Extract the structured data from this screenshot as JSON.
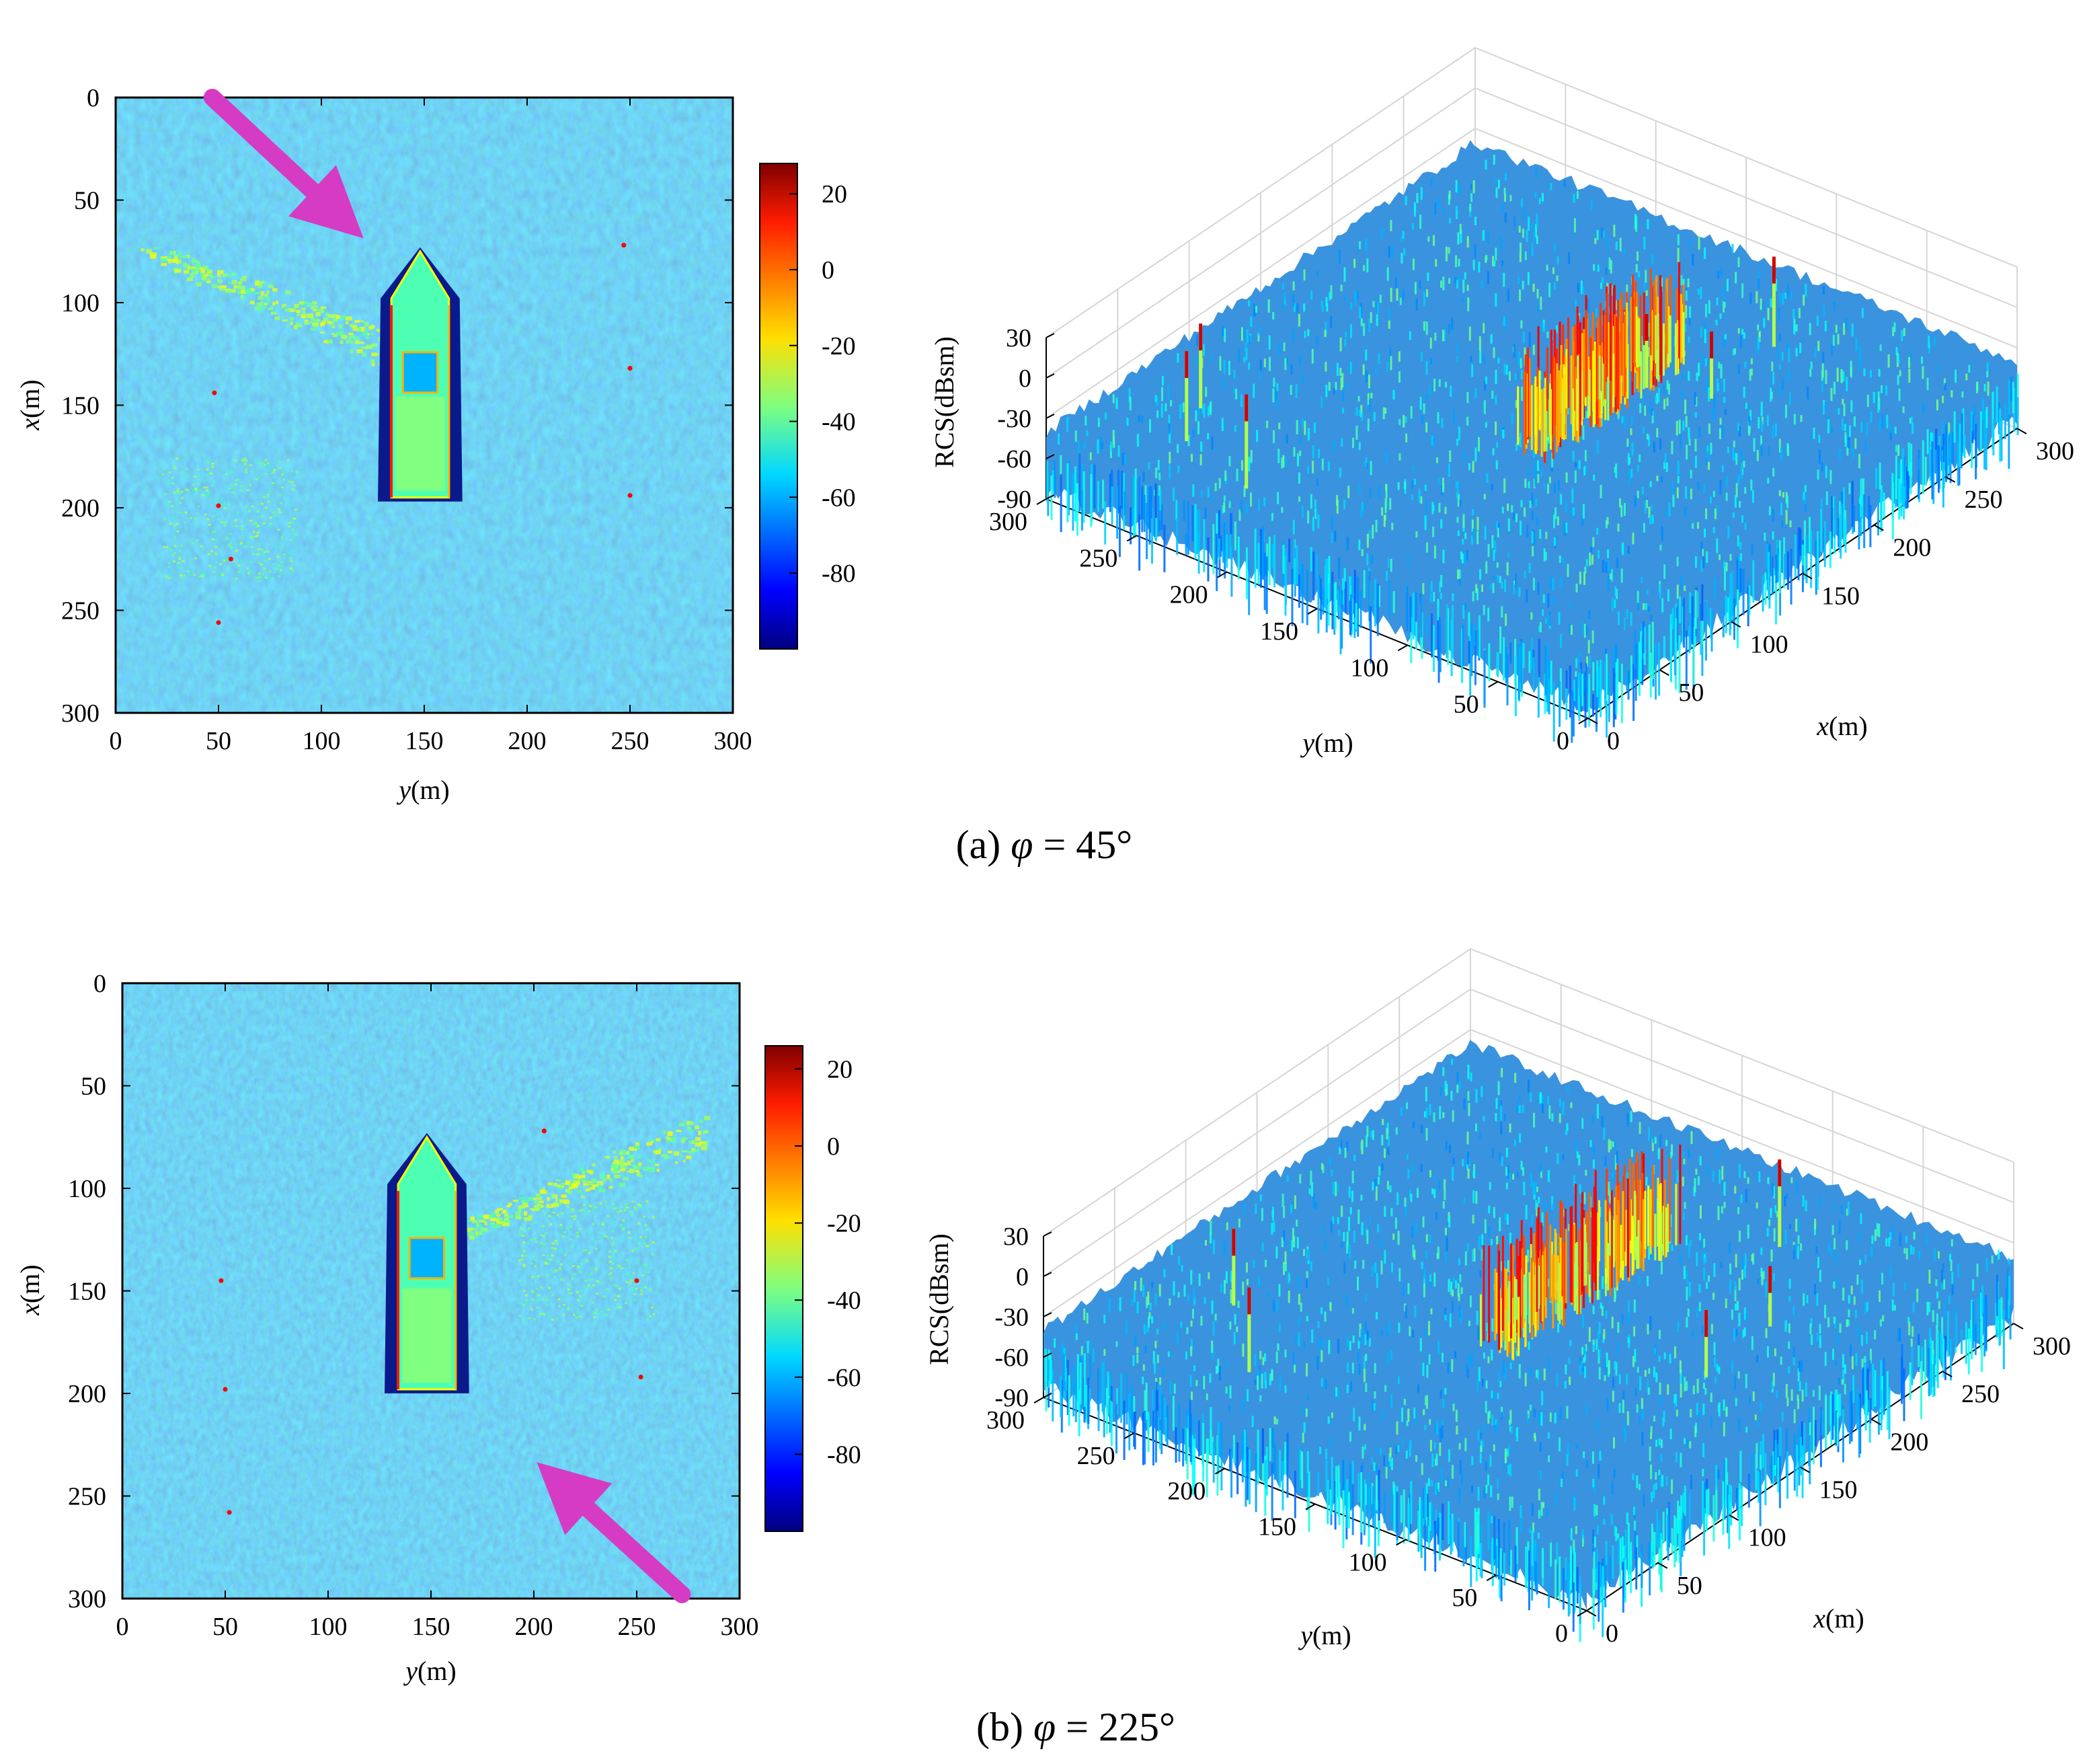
{
  "figure": {
    "panels": [
      {
        "caption_prefix": "(a)",
        "phi_symbol": "φ",
        "caption_value": " = 45°"
      },
      {
        "caption_prefix": "(b)",
        "phi_symbol": "φ",
        "caption_value": " = 225°"
      }
    ]
  },
  "chart_data": [
    {
      "type": "heatmap",
      "panel": "(a)",
      "phi_deg": 45,
      "description_shown": "2-D RCS image of sea surface with ship, incidence arrow from top-left",
      "xlabel_italic": "y",
      "xlabel_unit": "(m)",
      "ylabel_italic": "x",
      "ylabel_unit": "(m)",
      "x_ticks": [
        "0",
        "50",
        "100",
        "150",
        "200",
        "250",
        "300"
      ],
      "y_ticks": [
        "0",
        "50",
        "100",
        "150",
        "200",
        "250",
        "300"
      ],
      "xlim": [
        0,
        300
      ],
      "ylim": [
        0,
        300
      ],
      "colorbar": {
        "ticks": [
          "20",
          "0",
          "-20",
          "-40",
          "-60",
          "-80"
        ],
        "range": [
          -100,
          28
        ],
        "colormap": "jet"
      },
      "arrow": {
        "from_y": 47,
        "from_x": 0,
        "to_y": 108,
        "to_x": 57
      },
      "ship": {
        "y_center": 148,
        "x_top": 75,
        "x_bottom": 195,
        "width_m": 28
      },
      "wake": {
        "y_start": 18,
        "x_start": 75,
        "y_end": 140,
        "x_end": 125
      },
      "scatterers": [
        {
          "y": 247,
          "x": 72
        },
        {
          "y": 250,
          "x": 132
        },
        {
          "y": 48,
          "x": 144
        },
        {
          "y": 50,
          "x": 199
        },
        {
          "y": 50,
          "x": 256
        },
        {
          "y": 250,
          "x": 194
        },
        {
          "y": 56,
          "x": 225
        }
      ]
    },
    {
      "type": "surface",
      "panel": "(a)",
      "phi_deg": 45,
      "zlabel": "RCS(dBsm)",
      "xlabel_italic": "x",
      "xlabel_unit": "(m)",
      "ylabel_italic": "y",
      "ylabel_unit": "(m)",
      "z_ticks": [
        "30",
        "0",
        "-30",
        "-60",
        "-90"
      ],
      "zlim": [
        -90,
        30
      ],
      "x_ticks": [
        "0",
        "50",
        "100",
        "150",
        "200",
        "250",
        "300"
      ],
      "y_ticks": [
        "0",
        "50",
        "100",
        "150",
        "200",
        "250",
        "300"
      ],
      "spikes": [
        {
          "x": 60,
          "y": 262,
          "z": 18
        },
        {
          "x": 35,
          "y": 250,
          "z": 22
        },
        {
          "x": 20,
          "y": 205,
          "z": 25
        },
        {
          "x": 250,
          "y": 95,
          "z": 22
        },
        {
          "x": 190,
          "y": 118,
          "z": 10
        },
        {
          "x": 200,
          "y": 90,
          "z": 5
        }
      ]
    },
    {
      "type": "heatmap",
      "panel": "(b)",
      "phi_deg": 225,
      "description_shown": "2-D RCS image of sea surface with ship, incidence arrow from bottom-right",
      "xlabel_italic": "y",
      "xlabel_unit": "(m)",
      "ylabel_italic": "x",
      "ylabel_unit": "(m)",
      "x_ticks": [
        "0",
        "50",
        "100",
        "150",
        "200",
        "250",
        "300"
      ],
      "y_ticks": [
        "0",
        "50",
        "100",
        "150",
        "200",
        "250",
        "300"
      ],
      "xlim": [
        0,
        300
      ],
      "ylim": [
        0,
        300
      ],
      "colorbar": {
        "ticks": [
          "20",
          "0",
          "-20",
          "-40",
          "-60",
          "-80"
        ],
        "range": [
          -100,
          26
        ],
        "colormap": "jet"
      },
      "arrow": {
        "from_y": 272,
        "from_x": 298,
        "to_y": 214,
        "to_x": 245
      },
      "ship": {
        "y_center": 148,
        "x_top": 75,
        "x_bottom": 198,
        "width_m": 28
      },
      "wake": {
        "y_start": 162,
        "x_start": 122,
        "y_end": 282,
        "x_end": 72
      },
      "scatterers": [
        {
          "y": 48,
          "x": 145
        },
        {
          "y": 250,
          "x": 145
        },
        {
          "y": 252,
          "x": 192
        },
        {
          "y": 50,
          "x": 198
        },
        {
          "y": 52,
          "x": 258
        },
        {
          "y": 205,
          "x": 72
        }
      ]
    },
    {
      "type": "surface",
      "panel": "(b)",
      "phi_deg": 225,
      "zlabel": "RCS(dBsm)",
      "xlabel_italic": "x",
      "xlabel_unit": "(m)",
      "ylabel_italic": "y",
      "ylabel_unit": "(m)",
      "z_ticks": [
        "30",
        "0",
        "-30",
        "-60",
        "-90"
      ],
      "zlim": [
        -90,
        30
      ],
      "x_ticks": [
        "0",
        "50",
        "100",
        "150",
        "200",
        "250",
        "300"
      ],
      "y_ticks": [
        "0",
        "50",
        "100",
        "150",
        "200",
        "250",
        "300"
      ],
      "spikes": [
        {
          "x": 70,
          "y": 250,
          "z": 12
        },
        {
          "x": 30,
          "y": 210,
          "z": 18
        },
        {
          "x": 250,
          "y": 90,
          "z": 20
        },
        {
          "x": 145,
          "y": 48,
          "z": 5
        },
        {
          "x": 195,
          "y": 52,
          "z": 0
        }
      ]
    }
  ],
  "colors": {
    "sea_base": "#2f93e0",
    "arrow": "#d63bc4",
    "dark_hull": "#0b1a8a",
    "grid": "#d5d5d5"
  }
}
